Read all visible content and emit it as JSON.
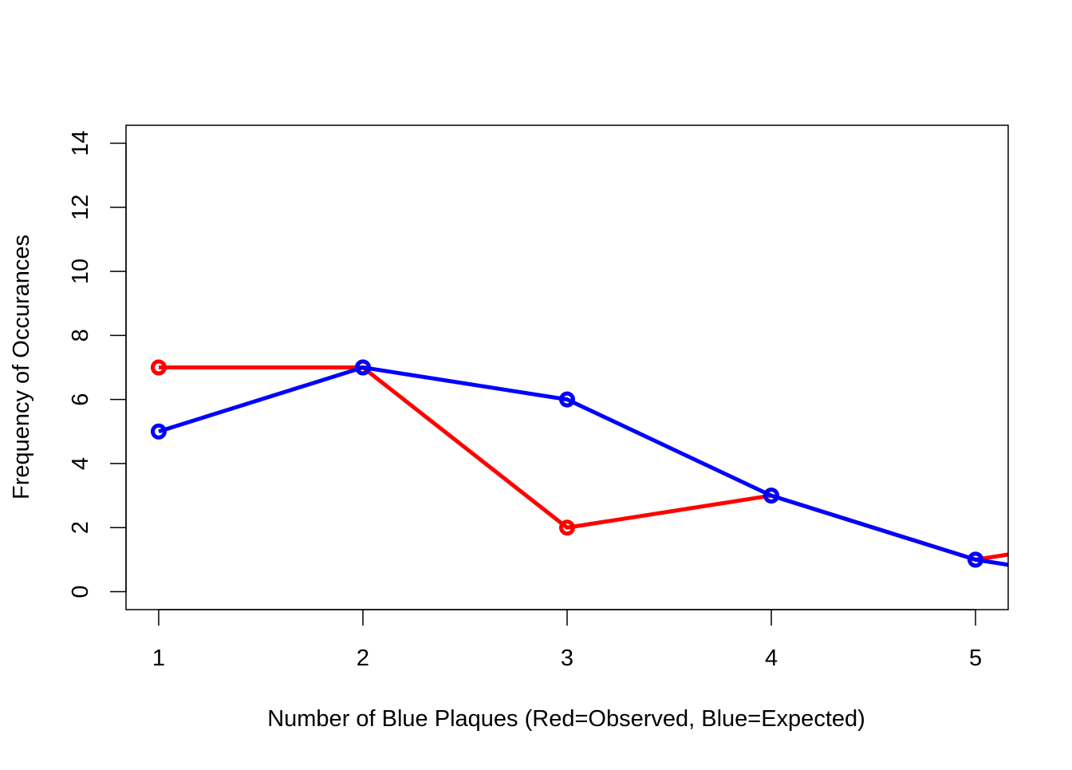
{
  "chart_data": {
    "type": "line",
    "title": "",
    "xlabel": "Number of Blue Plaques (Red=Observed, Blue=Expected)",
    "ylabel": "Frequency of Occurances",
    "xlim": [
      0.84,
      5.16
    ],
    "ylim": [
      -0.56,
      14.56
    ],
    "x_ticks": [
      1,
      2,
      3,
      4,
      5
    ],
    "y_ticks": [
      0,
      2,
      4,
      6,
      8,
      10,
      12,
      14
    ],
    "grid": false,
    "legend": "none",
    "series": [
      {
        "color": "#ff0000",
        "x": [
          1,
          2,
          3,
          4,
          5,
          6
        ],
        "y": [
          7,
          7,
          2,
          3,
          1,
          2
        ]
      },
      {
        "color": "#0000ff",
        "x": [
          1,
          2,
          3,
          4,
          5,
          6
        ],
        "y": [
          5,
          7,
          6,
          3,
          1,
          0
        ]
      }
    ]
  }
}
